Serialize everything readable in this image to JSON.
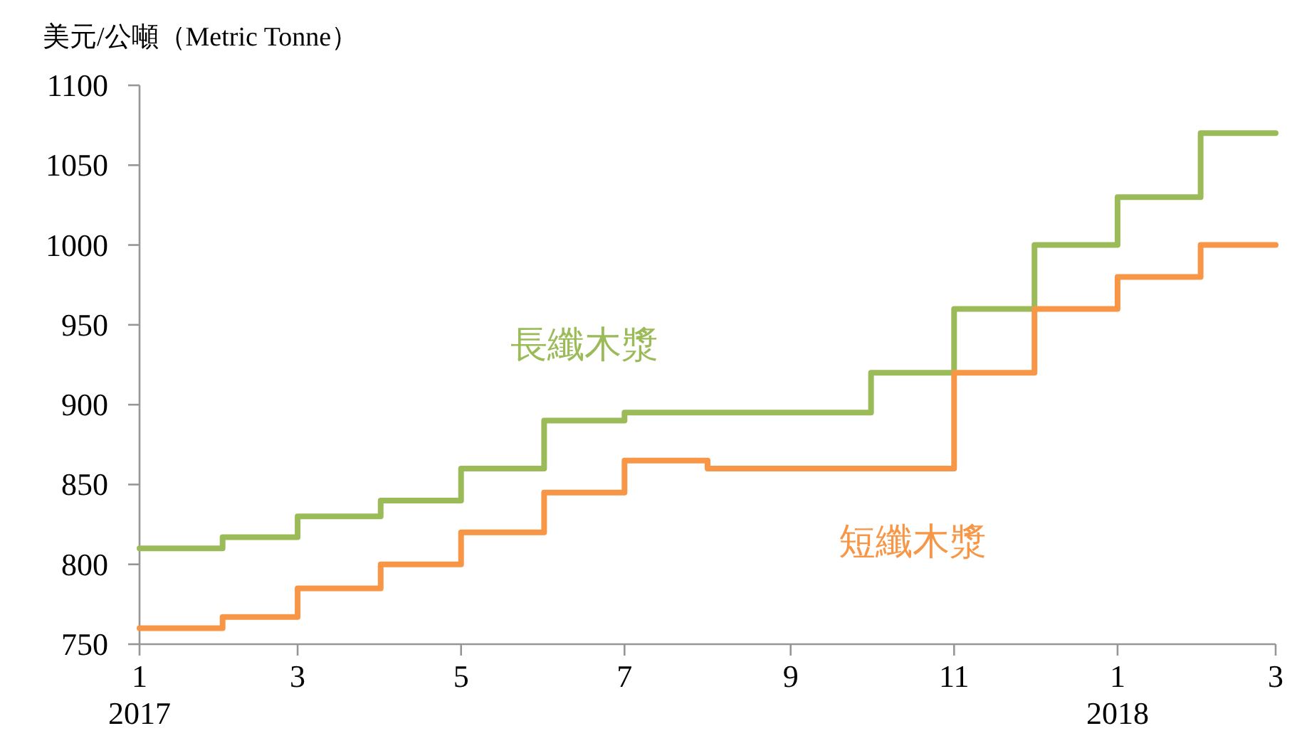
{
  "chart_data": {
    "type": "step",
    "ylabel": "美元/公噸（Metric Tonne）",
    "x": [
      "2017-01",
      "2017-02",
      "2017-03",
      "2017-04",
      "2017-05",
      "2017-06",
      "2017-07",
      "2017-08",
      "2017-09",
      "2017-10",
      "2017-11",
      "2017-12",
      "2018-01",
      "2018-02",
      "2018-03"
    ],
    "series": [
      {
        "name": "長纖木漿",
        "color": "#9bbb59",
        "values": [
          810,
          817,
          830,
          840,
          860,
          890,
          895,
          895,
          895,
          920,
          960,
          1000,
          1030,
          1070,
          1070
        ]
      },
      {
        "name": "短纖木漿",
        "color": "#f79646",
        "values": [
          760,
          767,
          785,
          800,
          820,
          845,
          865,
          860,
          860,
          860,
          920,
          960,
          980,
          1000,
          1000
        ]
      }
    ],
    "xlim": [
      "2017-01",
      "2018-03"
    ],
    "xticks": [
      {
        "value": "2017-01",
        "label": "1\n2017"
      },
      {
        "value": "2017-03",
        "label": "3"
      },
      {
        "value": "2017-05",
        "label": "5"
      },
      {
        "value": "2017-07",
        "label": "7"
      },
      {
        "value": "2017-09",
        "label": "9"
      },
      {
        "value": "2017-11",
        "label": "11"
      },
      {
        "value": "2018-01",
        "label": "1\n2018"
      },
      {
        "value": "2018-03",
        "label": "3"
      }
    ],
    "ylim": [
      750,
      1100
    ],
    "yticks": [
      750,
      800,
      850,
      900,
      950,
      1000,
      1050,
      1100
    ],
    "grid": false,
    "legend": false,
    "line_style": "solid",
    "marker": "none"
  }
}
